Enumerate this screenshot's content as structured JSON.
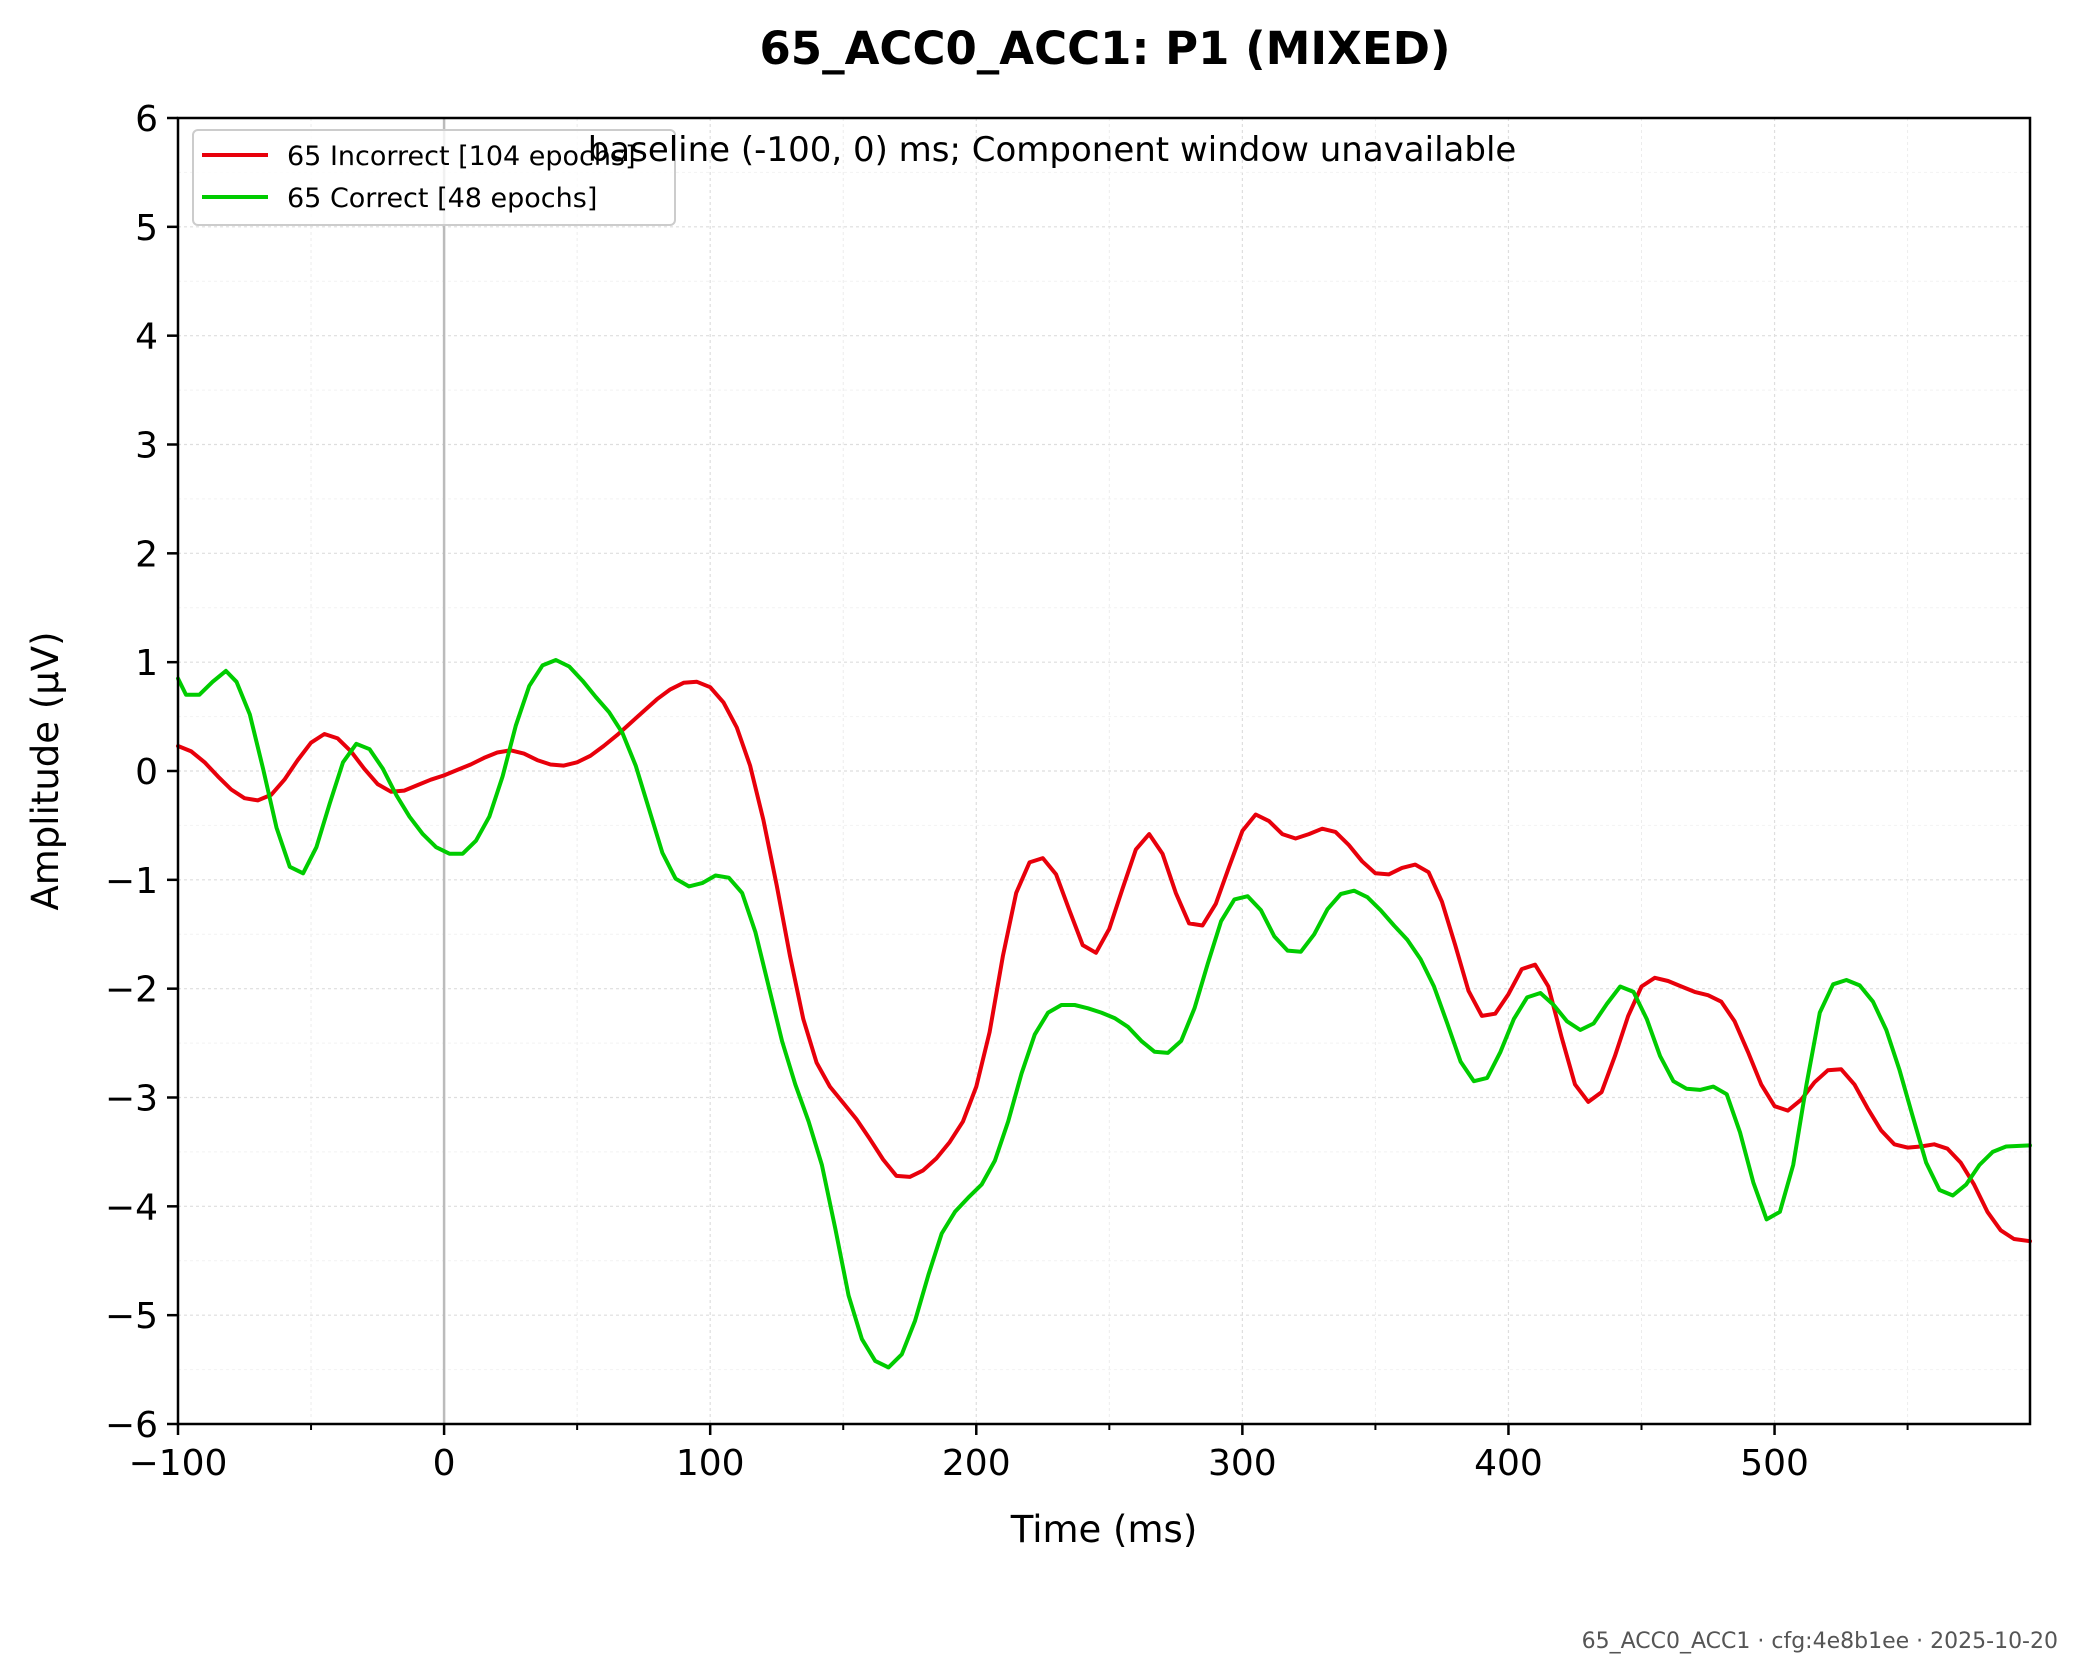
{
  "chart_data": {
    "type": "line",
    "title": "65_ACC0_ACC1: P1 (MIXED)",
    "annotation": "baseline (-100, 0) ms; Component window unavailable",
    "xlabel": "Time (ms)",
    "ylabel": "Amplitude (μV)",
    "xlim": [
      -100,
      596
    ],
    "ylim": [
      -6,
      6
    ],
    "x_ticks": [
      -100,
      0,
      100,
      200,
      300,
      400,
      500
    ],
    "x_tick_labels": [
      "−100",
      "0",
      "100",
      "200",
      "300",
      "400",
      "500"
    ],
    "y_ticks": [
      -6,
      -5,
      -4,
      -3,
      -2,
      -1,
      0,
      1,
      2,
      3,
      4,
      5,
      6
    ],
    "y_tick_labels": [
      "−6",
      "−5",
      "−4",
      "−3",
      "−2",
      "−1",
      "0",
      "1",
      "2",
      "3",
      "4",
      "5",
      "6"
    ],
    "grid": true,
    "legend_position": "top-left",
    "reference_line_x": 0,
    "series": [
      {
        "name": "65 Incorrect [104 epochs]",
        "color": "#e8000b",
        "points": [
          [
            -100,
            0.23
          ],
          [
            -95,
            0.18
          ],
          [
            -90,
            0.08
          ],
          [
            -85,
            -0.05
          ],
          [
            -80,
            -0.17
          ],
          [
            -75,
            -0.25
          ],
          [
            -70,
            -0.27
          ],
          [
            -65,
            -0.22
          ],
          [
            -60,
            -0.08
          ],
          [
            -55,
            0.1
          ],
          [
            -50,
            0.26
          ],
          [
            -45,
            0.34
          ],
          [
            -40,
            0.3
          ],
          [
            -35,
            0.18
          ],
          [
            -30,
            0.02
          ],
          [
            -25,
            -0.12
          ],
          [
            -20,
            -0.19
          ],
          [
            -15,
            -0.18
          ],
          [
            -10,
            -0.13
          ],
          [
            -5,
            -0.08
          ],
          [
            0,
            -0.04
          ],
          [
            5,
            0.01
          ],
          [
            10,
            0.06
          ],
          [
            15,
            0.12
          ],
          [
            20,
            0.17
          ],
          [
            25,
            0.19
          ],
          [
            30,
            0.16
          ],
          [
            35,
            0.1
          ],
          [
            40,
            0.06
          ],
          [
            45,
            0.05
          ],
          [
            50,
            0.08
          ],
          [
            55,
            0.14
          ],
          [
            60,
            0.23
          ],
          [
            65,
            0.33
          ],
          [
            70,
            0.44
          ],
          [
            75,
            0.55
          ],
          [
            80,
            0.66
          ],
          [
            85,
            0.75
          ],
          [
            90,
            0.81
          ],
          [
            95,
            0.82
          ],
          [
            100,
            0.77
          ],
          [
            105,
            0.63
          ],
          [
            110,
            0.4
          ],
          [
            115,
            0.05
          ],
          [
            120,
            -0.45
          ],
          [
            125,
            -1.05
          ],
          [
            130,
            -1.7
          ],
          [
            135,
            -2.28
          ],
          [
            140,
            -2.68
          ],
          [
            145,
            -2.9
          ],
          [
            150,
            -3.05
          ],
          [
            155,
            -3.2
          ],
          [
            160,
            -3.38
          ],
          [
            165,
            -3.57
          ],
          [
            170,
            -3.72
          ],
          [
            175,
            -3.73
          ],
          [
            180,
            -3.67
          ],
          [
            185,
            -3.56
          ],
          [
            190,
            -3.41
          ],
          [
            195,
            -3.22
          ],
          [
            200,
            -2.9
          ],
          [
            205,
            -2.4
          ],
          [
            210,
            -1.7
          ],
          [
            215,
            -1.12
          ],
          [
            220,
            -0.84
          ],
          [
            225,
            -0.8
          ],
          [
            230,
            -0.95
          ],
          [
            235,
            -1.28
          ],
          [
            240,
            -1.6
          ],
          [
            245,
            -1.67
          ],
          [
            250,
            -1.45
          ],
          [
            255,
            -1.08
          ],
          [
            260,
            -0.72
          ],
          [
            265,
            -0.58
          ],
          [
            270,
            -0.76
          ],
          [
            275,
            -1.12
          ],
          [
            280,
            -1.4
          ],
          [
            285,
            -1.42
          ],
          [
            290,
            -1.22
          ],
          [
            295,
            -0.88
          ],
          [
            300,
            -0.55
          ],
          [
            305,
            -0.4
          ],
          [
            310,
            -0.46
          ],
          [
            315,
            -0.58
          ],
          [
            320,
            -0.62
          ],
          [
            325,
            -0.58
          ],
          [
            330,
            -0.53
          ],
          [
            335,
            -0.56
          ],
          [
            340,
            -0.68
          ],
          [
            345,
            -0.83
          ],
          [
            350,
            -0.94
          ],
          [
            355,
            -0.95
          ],
          [
            360,
            -0.89
          ],
          [
            365,
            -0.86
          ],
          [
            370,
            -0.93
          ],
          [
            375,
            -1.2
          ],
          [
            380,
            -1.6
          ],
          [
            385,
            -2.02
          ],
          [
            390,
            -2.25
          ],
          [
            395,
            -2.23
          ],
          [
            400,
            -2.05
          ],
          [
            405,
            -1.82
          ],
          [
            410,
            -1.78
          ],
          [
            415,
            -1.98
          ],
          [
            420,
            -2.45
          ],
          [
            425,
            -2.88
          ],
          [
            430,
            -3.04
          ],
          [
            435,
            -2.95
          ],
          [
            440,
            -2.62
          ],
          [
            445,
            -2.25
          ],
          [
            450,
            -1.98
          ],
          [
            455,
            -1.9
          ],
          [
            460,
            -1.93
          ],
          [
            465,
            -1.98
          ],
          [
            470,
            -2.03
          ],
          [
            475,
            -2.06
          ],
          [
            480,
            -2.12
          ],
          [
            485,
            -2.3
          ],
          [
            490,
            -2.58
          ],
          [
            495,
            -2.88
          ],
          [
            500,
            -3.08
          ],
          [
            505,
            -3.12
          ],
          [
            510,
            -3.02
          ],
          [
            515,
            -2.86
          ],
          [
            520,
            -2.75
          ],
          [
            525,
            -2.74
          ],
          [
            530,
            -2.88
          ],
          [
            535,
            -3.1
          ],
          [
            540,
            -3.3
          ],
          [
            545,
            -3.43
          ],
          [
            550,
            -3.46
          ],
          [
            555,
            -3.45
          ],
          [
            560,
            -3.43
          ],
          [
            565,
            -3.47
          ],
          [
            570,
            -3.6
          ],
          [
            575,
            -3.8
          ],
          [
            580,
            -4.05
          ],
          [
            585,
            -4.22
          ],
          [
            590,
            -4.3
          ],
          [
            596,
            -4.32
          ]
        ]
      },
      {
        "name": "65 Correct [48 epochs]",
        "color": "#00cc00",
        "points": [
          [
            -100,
            0.85
          ],
          [
            -97,
            0.7
          ],
          [
            -92,
            0.7
          ],
          [
            -87,
            0.82
          ],
          [
            -82,
            0.92
          ],
          [
            -78,
            0.82
          ],
          [
            -73,
            0.52
          ],
          [
            -68,
            0.02
          ],
          [
            -63,
            -0.52
          ],
          [
            -58,
            -0.88
          ],
          [
            -53,
            -0.94
          ],
          [
            -48,
            -0.7
          ],
          [
            -43,
            -0.3
          ],
          [
            -38,
            0.08
          ],
          [
            -33,
            0.25
          ],
          [
            -28,
            0.2
          ],
          [
            -23,
            0.02
          ],
          [
            -18,
            -0.22
          ],
          [
            -13,
            -0.42
          ],
          [
            -8,
            -0.58
          ],
          [
            -3,
            -0.7
          ],
          [
            2,
            -0.76
          ],
          [
            7,
            -0.76
          ],
          [
            12,
            -0.64
          ],
          [
            17,
            -0.42
          ],
          [
            22,
            -0.05
          ],
          [
            27,
            0.42
          ],
          [
            32,
            0.78
          ],
          [
            37,
            0.97
          ],
          [
            42,
            1.02
          ],
          [
            47,
            0.96
          ],
          [
            52,
            0.83
          ],
          [
            57,
            0.68
          ],
          [
            62,
            0.54
          ],
          [
            67,
            0.35
          ],
          [
            72,
            0.05
          ],
          [
            77,
            -0.35
          ],
          [
            82,
            -0.75
          ],
          [
            87,
            -0.99
          ],
          [
            92,
            -1.06
          ],
          [
            97,
            -1.03
          ],
          [
            102,
            -0.96
          ],
          [
            107,
            -0.98
          ],
          [
            112,
            -1.12
          ],
          [
            117,
            -1.48
          ],
          [
            122,
            -1.98
          ],
          [
            127,
            -2.48
          ],
          [
            132,
            -2.88
          ],
          [
            137,
            -3.22
          ],
          [
            142,
            -3.62
          ],
          [
            147,
            -4.2
          ],
          [
            152,
            -4.82
          ],
          [
            157,
            -5.22
          ],
          [
            162,
            -5.42
          ],
          [
            167,
            -5.48
          ],
          [
            172,
            -5.36
          ],
          [
            177,
            -5.05
          ],
          [
            182,
            -4.63
          ],
          [
            187,
            -4.25
          ],
          [
            192,
            -4.05
          ],
          [
            197,
            -3.92
          ],
          [
            202,
            -3.8
          ],
          [
            207,
            -3.58
          ],
          [
            212,
            -3.22
          ],
          [
            217,
            -2.78
          ],
          [
            222,
            -2.42
          ],
          [
            227,
            -2.22
          ],
          [
            232,
            -2.15
          ],
          [
            237,
            -2.15
          ],
          [
            242,
            -2.18
          ],
          [
            247,
            -2.22
          ],
          [
            252,
            -2.27
          ],
          [
            257,
            -2.35
          ],
          [
            262,
            -2.48
          ],
          [
            267,
            -2.58
          ],
          [
            272,
            -2.59
          ],
          [
            277,
            -2.48
          ],
          [
            282,
            -2.18
          ],
          [
            287,
            -1.77
          ],
          [
            292,
            -1.38
          ],
          [
            297,
            -1.18
          ],
          [
            302,
            -1.15
          ],
          [
            307,
            -1.28
          ],
          [
            312,
            -1.52
          ],
          [
            317,
            -1.65
          ],
          [
            322,
            -1.66
          ],
          [
            327,
            -1.5
          ],
          [
            332,
            -1.27
          ],
          [
            337,
            -1.13
          ],
          [
            342,
            -1.1
          ],
          [
            347,
            -1.16
          ],
          [
            352,
            -1.28
          ],
          [
            357,
            -1.42
          ],
          [
            362,
            -1.55
          ],
          [
            367,
            -1.73
          ],
          [
            372,
            -1.98
          ],
          [
            377,
            -2.32
          ],
          [
            382,
            -2.67
          ],
          [
            387,
            -2.85
          ],
          [
            392,
            -2.82
          ],
          [
            397,
            -2.58
          ],
          [
            402,
            -2.28
          ],
          [
            407,
            -2.08
          ],
          [
            412,
            -2.04
          ],
          [
            417,
            -2.15
          ],
          [
            422,
            -2.3
          ],
          [
            427,
            -2.38
          ],
          [
            432,
            -2.32
          ],
          [
            437,
            -2.14
          ],
          [
            442,
            -1.98
          ],
          [
            447,
            -2.03
          ],
          [
            452,
            -2.28
          ],
          [
            457,
            -2.62
          ],
          [
            462,
            -2.85
          ],
          [
            467,
            -2.92
          ],
          [
            472,
            -2.93
          ],
          [
            477,
            -2.9
          ],
          [
            482,
            -2.97
          ],
          [
            487,
            -3.32
          ],
          [
            492,
            -3.78
          ],
          [
            497,
            -4.12
          ],
          [
            502,
            -4.05
          ],
          [
            507,
            -3.62
          ],
          [
            512,
            -2.88
          ],
          [
            517,
            -2.22
          ],
          [
            522,
            -1.96
          ],
          [
            527,
            -1.92
          ],
          [
            532,
            -1.97
          ],
          [
            537,
            -2.12
          ],
          [
            542,
            -2.38
          ],
          [
            547,
            -2.75
          ],
          [
            552,
            -3.18
          ],
          [
            557,
            -3.6
          ],
          [
            562,
            -3.85
          ],
          [
            567,
            -3.9
          ],
          [
            572,
            -3.8
          ],
          [
            577,
            -3.62
          ],
          [
            582,
            -3.5
          ],
          [
            587,
            -3.45
          ],
          [
            596,
            -3.44
          ]
        ]
      }
    ]
  },
  "footer": "65_ACC0_ACC1 · cfg:4e8b1ee · 2025-10-20"
}
